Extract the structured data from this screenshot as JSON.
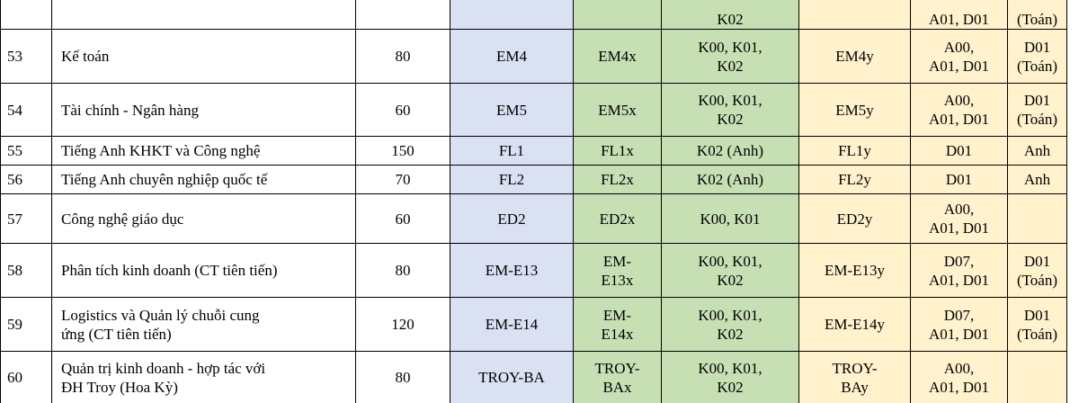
{
  "table": {
    "rows": [
      [
        null,
        null,
        null,
        null,
        null,
        "K02",
        null,
        "A01, D01",
        "(Toán)"
      ],
      [
        "53",
        "Kế toán",
        "80",
        "EM4",
        "EM4x",
        "K00, K01,\nK02",
        "EM4y",
        "A00,\nA01, D01",
        "D01\n(Toán)"
      ],
      [
        "54",
        "Tài chính - Ngân hàng",
        "60",
        "EM5",
        "EM5x",
        "K00, K01,\nK02",
        "EM5y",
        "A00,\nA01, D01",
        "D01\n(Toán)"
      ],
      [
        "55",
        "Tiếng Anh KHKT và Công nghệ",
        "150",
        "FL1",
        "FL1x",
        "K02 (Anh)",
        "FL1y",
        "D01",
        "Anh"
      ],
      [
        "56",
        "Tiếng Anh chuyên nghiệp quốc tế",
        "70",
        "FL2",
        "FL2x",
        "K02 (Anh)",
        "FL2y",
        "D01",
        "Anh"
      ],
      [
        "57",
        "Công nghệ giáo dục",
        "60",
        "ED2",
        "ED2x",
        "K00, K01",
        "ED2y",
        "A00,\nA01, D01",
        null
      ],
      [
        "58",
        "Phân tích kinh doanh (CT tiên tiến)",
        "80",
        "EM-E13",
        "EM-\nE13x",
        "K00, K01,\nK02",
        "EM-E13y",
        "D07,\nA01, D01",
        "D01\n(Toán)"
      ],
      [
        "59",
        "Logistics và Quản lý chuỗi cung\nứng (CT tiên tiến)",
        "120",
        "EM-E14",
        "EM-\nE14x",
        "K00, K01,\nK02",
        "EM-E14y",
        "D07,\nA01, D01",
        "D01\n(Toán)"
      ],
      [
        "60",
        "Quản trị kinh doanh - hợp tác với\nĐH Troy (Hoa Kỳ)",
        "80",
        "TROY-BA",
        "TROY-\nBAx",
        "K00, K01,\nK02",
        "TROY-\nBAy",
        "A00,\nA01, D01",
        null
      ]
    ]
  }
}
